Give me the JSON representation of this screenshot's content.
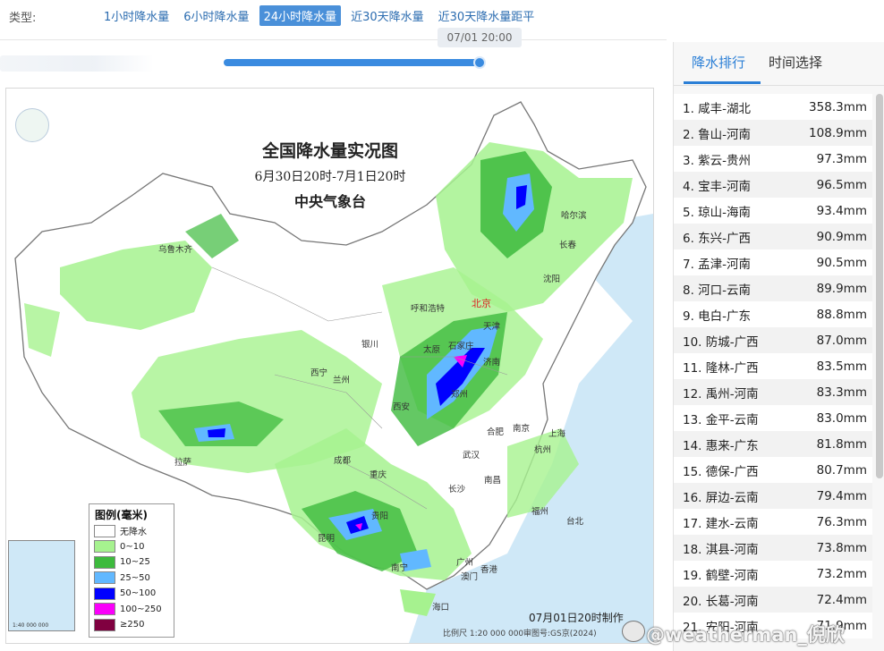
{
  "typebar": {
    "label": "类型:",
    "tabs": [
      "1小时降水量",
      "6小时降水量",
      "24小时降水量",
      "近30天降水量",
      "近30天降水量距平"
    ],
    "active_index": 2
  },
  "slider": {
    "time_label": "07/01 20:00",
    "progress": 1.0
  },
  "map": {
    "title": "全国降水量实况图",
    "subtitle": "6月30日20时-7月1日20时",
    "org": "中央气象台",
    "made": "07月01日20时制作",
    "scale": "比例尺 1:20 000 000",
    "shenpin": "审图号:GS京(2024)",
    "cities": {
      "wulumuqi": "乌鲁木齐",
      "haerbin": "哈尔滨",
      "changchun": "长春",
      "shenyang": "沈阳",
      "huhehaote": "呼和浩特",
      "beijing": "北京",
      "tianjin": "天津",
      "yinchuan": "银川",
      "taiyuan": "太原",
      "shijiazhuang": "石家庄",
      "jinan": "济南",
      "xining": "西宁",
      "lanzhou": "兰州",
      "xian": "西安",
      "zhengzhou": "郑州",
      "lasa": "拉萨",
      "chengdu": "成都",
      "chongqing": "重庆",
      "wuhan": "武汉",
      "hefei": "合肥",
      "nanjing": "南京",
      "shanghai": "上海",
      "hangzhou": "杭州",
      "changsha": "长沙",
      "nanchang": "南昌",
      "fuzhou": "福州",
      "taibei": "台北",
      "guiyang": "贵阳",
      "kunming": "昆明",
      "nanning": "南宁",
      "guangzhou": "广州",
      "xianggang": "香港",
      "aomen": "澳门",
      "haikou": "海口"
    },
    "inset_scale": "1:40 000 000"
  },
  "legend": {
    "title": "图例(毫米)",
    "items": [
      {
        "label": "无降水",
        "color": "#ffffff"
      },
      {
        "label": "0~10",
        "color": "#a6f28f"
      },
      {
        "label": "10~25",
        "color": "#3dba3d"
      },
      {
        "label": "25~50",
        "color": "#61b8ff"
      },
      {
        "label": "50~100",
        "color": "#0000ff"
      },
      {
        "label": "100~250",
        "color": "#fa00fa"
      },
      {
        "label": "≥250",
        "color": "#800040"
      }
    ]
  },
  "side": {
    "tabs": [
      "降水排行",
      "时间选择"
    ],
    "active_index": 0,
    "ranking": [
      {
        "name": "1. 咸丰-湖北",
        "value": "358.3mm"
      },
      {
        "name": "2. 鲁山-河南",
        "value": "108.9mm"
      },
      {
        "name": "3. 紫云-贵州",
        "value": "97.3mm"
      },
      {
        "name": "4. 宝丰-河南",
        "value": "96.5mm"
      },
      {
        "name": "5. 琼山-海南",
        "value": "93.4mm"
      },
      {
        "name": "6. 东兴-广西",
        "value": "90.9mm"
      },
      {
        "name": "7. 孟津-河南",
        "value": "90.5mm"
      },
      {
        "name": "8. 河口-云南",
        "value": "89.9mm"
      },
      {
        "name": "9. 电白-广东",
        "value": "88.8mm"
      },
      {
        "name": "10. 防城-广西",
        "value": "87.0mm"
      },
      {
        "name": "11. 隆林-广西",
        "value": "83.5mm"
      },
      {
        "name": "12. 禹州-河南",
        "value": "83.3mm"
      },
      {
        "name": "13. 金平-云南",
        "value": "83.0mm"
      },
      {
        "name": "14. 惠来-广东",
        "value": "81.8mm"
      },
      {
        "name": "15. 德保-广西",
        "value": "80.7mm"
      },
      {
        "name": "16. 屏边-云南",
        "value": "79.4mm"
      },
      {
        "name": "17. 建水-云南",
        "value": "76.3mm"
      },
      {
        "name": "18. 淇县-河南",
        "value": "73.8mm"
      },
      {
        "name": "19. 鹤壁-河南",
        "value": "73.2mm"
      },
      {
        "name": "20. 长葛-河南",
        "value": "72.4mm"
      },
      {
        "name": "21. 安阳-河南",
        "value": "71.9mm"
      }
    ]
  },
  "watermark": "@weatherman_倪欣",
  "colors": {
    "accent": "#2b7fd6",
    "light_rain": "#a6f28f",
    "moderate_rain": "#3dba3d",
    "heavy_rain": "#61b8ff",
    "rainstorm": "#0000ff",
    "heavy_rainstorm": "#fa00fa"
  }
}
